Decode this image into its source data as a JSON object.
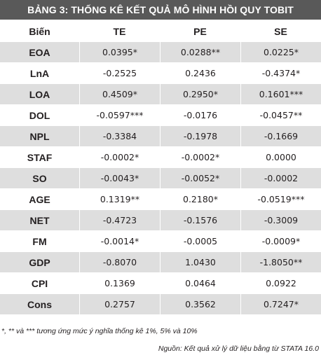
{
  "title": "BẢNG 3: THỐNG KÊ KẾT QUẢ MÔ HÌNH HỒI QUY TOBIT",
  "table": {
    "headers": [
      "Biến",
      "TE",
      "PE",
      "SE"
    ],
    "rows": [
      [
        "EOA",
        "0.0395*",
        "0.0288**",
        "0.0225*"
      ],
      [
        "LnA",
        "-0.2525",
        "0.2436",
        "-0.4374*"
      ],
      [
        "LOA",
        "0.4509*",
        "0.2950*",
        "0.1601***"
      ],
      [
        "DOL",
        "-0.0597***",
        "-0.0176",
        "-0.0457**"
      ],
      [
        "NPL",
        "-0.3384",
        "-0.1978",
        "-0.1669"
      ],
      [
        "STAF",
        "-0.0002*",
        "-0.0002*",
        "0.0000"
      ],
      [
        "SO",
        "-0.0043*",
        "-0.0052*",
        "-0.0002"
      ],
      [
        "AGE",
        "0.1319**",
        "0.2180*",
        "-0.0519***"
      ],
      [
        "NET",
        "-0.4723",
        "-0.1576",
        "-0.3009"
      ],
      [
        "FM",
        "-0.0014*",
        "-0.0005",
        "-0.0009*"
      ],
      [
        "GDP",
        "-0.8070",
        "1.0430",
        "-1.8050**"
      ],
      [
        "CPI",
        "0.1369",
        "0.0464",
        "0.0922"
      ],
      [
        "Cons",
        "0.2757",
        "0.3562",
        "0.7247*"
      ]
    ]
  },
  "footnote": "*, ** và *** tương ứng mức ý nghĩa thống kê 1%, 5% và 10%",
  "source": "Nguồn: Kết quả xử lý dữ liệu bằng từ STATA 16.0",
  "colors": {
    "title_background": "#595959",
    "title_text": "#ffffff",
    "stripe": "#dedede",
    "text": "#231f20"
  }
}
